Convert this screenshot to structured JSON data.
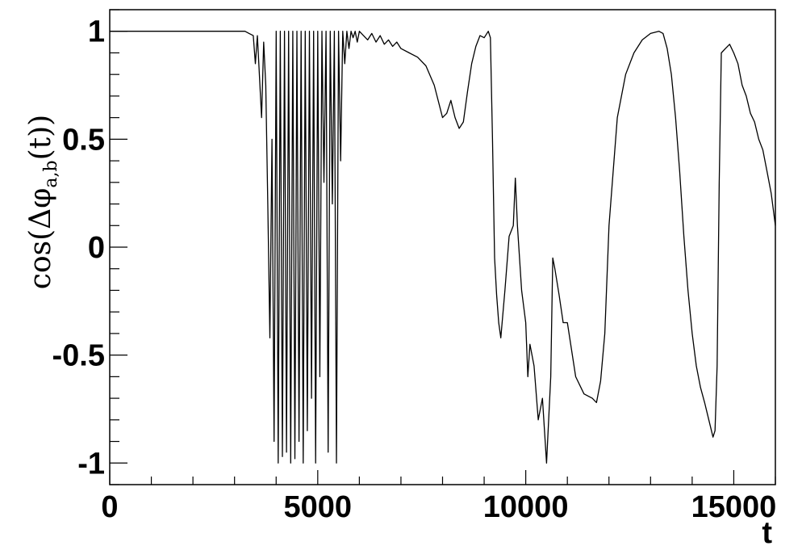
{
  "chart_data": {
    "type": "line",
    "xlabel": "t",
    "ylabel": "cos(Δφ",
    "ylabel_sub": "a,b",
    "ylabel_tail": "(t))",
    "xlim": [
      0,
      16000
    ],
    "ylim": [
      -1.1,
      1.1
    ],
    "x_ticks": [
      0,
      5000,
      10000,
      15000
    ],
    "x_tick_labels": [
      "0",
      "5000",
      "10000",
      "15000"
    ],
    "y_ticks": [
      1,
      0.5,
      0,
      -0.5,
      -1
    ],
    "y_tick_labels": [
      "1",
      "0.5",
      "0",
      "-0.5",
      "-1"
    ],
    "grid": false,
    "legend": "none",
    "line_color": "#000000",
    "series": [
      {
        "x": [
          0,
          3100,
          3250,
          3350,
          3450,
          3500,
          3550,
          3650,
          3700,
          3750,
          3800,
          3850,
          3900,
          3950,
          4000,
          4050,
          4100,
          4150,
          4200,
          4250,
          4300,
          4350,
          4400,
          4450,
          4500,
          4550,
          4600,
          4650,
          4700,
          4750,
          4800,
          4850,
          4900,
          4950,
          5000,
          5050,
          5100,
          5150,
          5200,
          5250,
          5300,
          5350,
          5400,
          5450,
          5500,
          5550,
          5600,
          5650,
          5700,
          5750,
          5800,
          5850,
          5900,
          5950,
          6000,
          6100,
          6200,
          6300,
          6400,
          6500,
          6600,
          6700,
          6800,
          6900,
          7000,
          7200,
          7400,
          7600,
          7800,
          8000,
          8100,
          8200,
          8300,
          8400,
          8500,
          8600,
          8700,
          8800,
          8900,
          9000,
          9100,
          9150,
          9200,
          9250,
          9300,
          9350,
          9400,
          9500,
          9600,
          9700,
          9750,
          9800,
          9900,
          10000,
          10050,
          10100,
          10200,
          10300,
          10400,
          10500,
          10600,
          10650,
          10700,
          10800,
          10900,
          11000,
          11200,
          11400,
          11600,
          11700,
          11800,
          11900,
          12000,
          12200,
          12400,
          12600,
          12800,
          13000,
          13200,
          13300,
          13400,
          13500,
          13600,
          13700,
          13800,
          13900,
          14000,
          14100,
          14200,
          14300,
          14400,
          14500,
          14550,
          14600,
          14650,
          14700,
          14800,
          14900,
          15000,
          15100,
          15200,
          15300,
          15400,
          15500,
          15600,
          15700,
          15800,
          15900,
          16000
        ],
        "y": [
          1,
          1,
          1,
          0.99,
          0.98,
          0.85,
          0.98,
          0.6,
          0.95,
          0.75,
          0.2,
          -0.42,
          0.5,
          -0.9,
          1,
          -1,
          1,
          -0.97,
          1,
          -0.95,
          1,
          -1,
          1,
          -0.98,
          1,
          -0.9,
          1,
          -1,
          1,
          -0.85,
          1,
          -0.7,
          1,
          -1,
          1,
          -0.6,
          1,
          0.3,
          1,
          -0.95,
          1,
          0.2,
          1,
          -1,
          1,
          0.4,
          1,
          0.85,
          1,
          0.92,
          1,
          0.97,
          1,
          0.95,
          1,
          0.98,
          0.96,
          0.99,
          0.95,
          0.98,
          0.94,
          0.96,
          0.93,
          0.95,
          0.92,
          0.9,
          0.88,
          0.84,
          0.75,
          0.6,
          0.62,
          0.68,
          0.6,
          0.55,
          0.58,
          0.72,
          0.85,
          0.93,
          0.98,
          0.97,
          1,
          0.97,
          0.5,
          -0.05,
          -0.22,
          -0.35,
          -0.42,
          -0.2,
          0.05,
          0.1,
          0.32,
          0.1,
          -0.2,
          -0.35,
          -0.6,
          -0.45,
          -0.55,
          -0.8,
          -0.7,
          -1,
          -0.6,
          -0.05,
          -0.1,
          -0.22,
          -0.35,
          -0.35,
          -0.6,
          -0.68,
          -0.7,
          -0.72,
          -0.62,
          -0.4,
          0.1,
          0.6,
          0.8,
          0.9,
          0.96,
          0.99,
          1,
          0.99,
          0.92,
          0.8,
          0.6,
          0.35,
          0.05,
          -0.2,
          -0.4,
          -0.55,
          -0.65,
          -0.72,
          -0.8,
          -0.88,
          -0.85,
          -0.55,
          0.3,
          0.9,
          0.92,
          0.94,
          0.9,
          0.85,
          0.75,
          0.7,
          0.62,
          0.58,
          0.5,
          0.45,
          0.35,
          0.25,
          0.1
        ]
      }
    ]
  }
}
